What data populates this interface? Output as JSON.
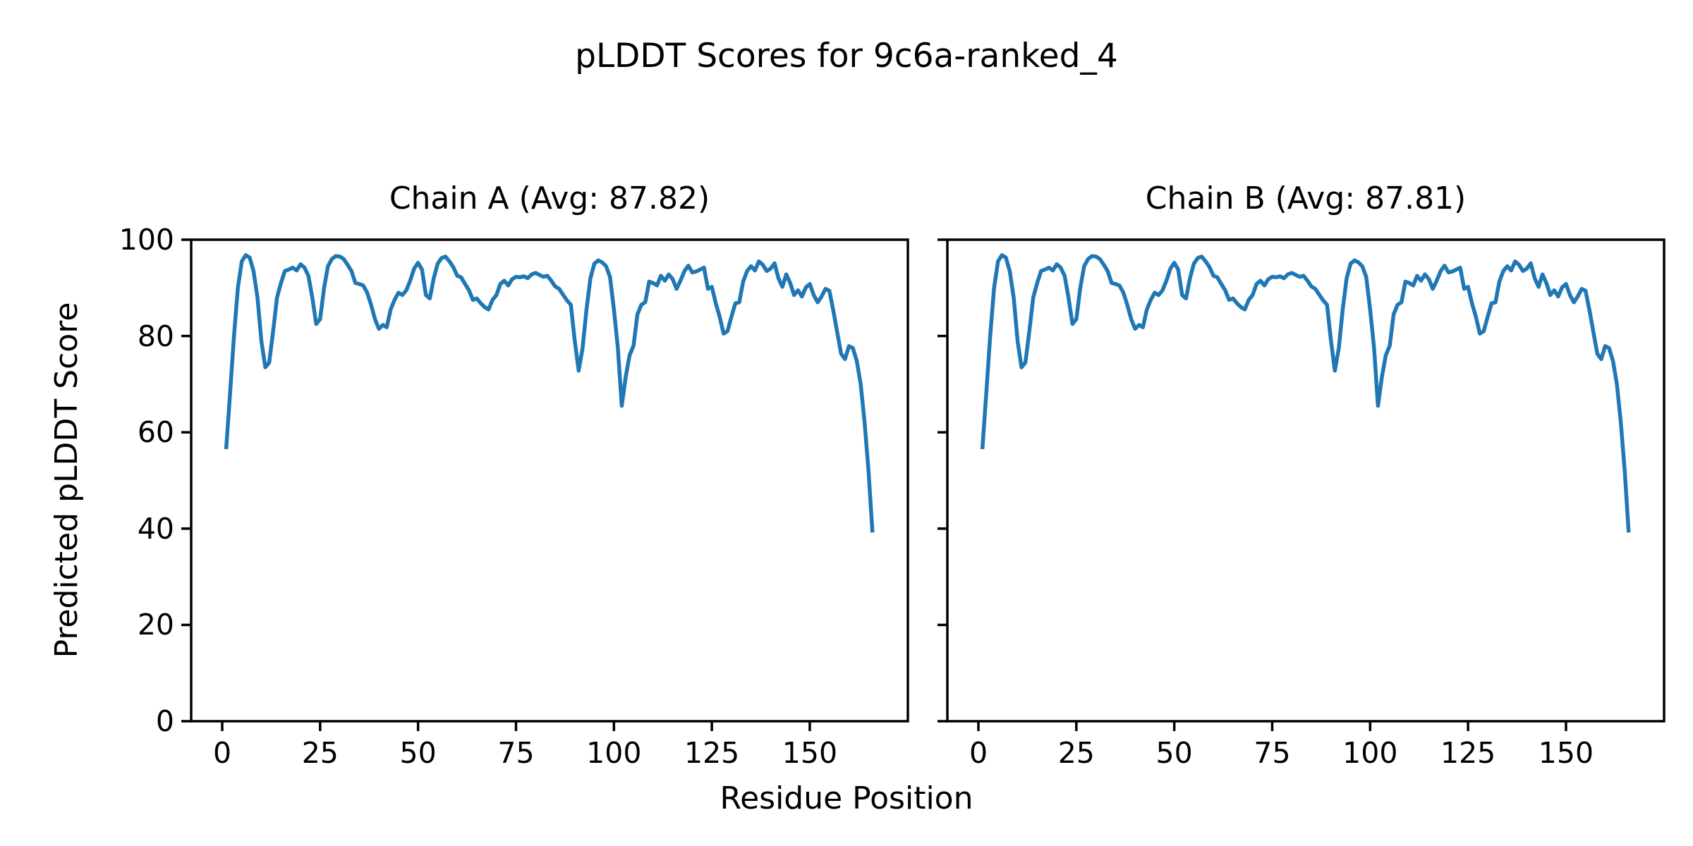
{
  "figure": {
    "title": "pLDDT Scores for 9c6a-ranked_4",
    "xlabel": "Residue Position",
    "ylabel": "Predicted pLDDT Score",
    "background": "#ffffff",
    "text_color": "#000000"
  },
  "chart_data": [
    {
      "type": "line",
      "title": "Chain A (Avg: 87.82)",
      "chain": "A",
      "avg": 87.82,
      "line_color": "#1f77b4",
      "grid": false,
      "legend": null,
      "x_start": 1,
      "x_ticks": [
        0,
        25,
        50,
        75,
        100,
        125,
        150
      ],
      "y_ticks": [
        0,
        20,
        40,
        60,
        80,
        100
      ],
      "xlim": [
        -9.4,
        174.8
      ],
      "ylim": [
        0,
        100
      ],
      "values": [
        56.5,
        68,
        80,
        90,
        95.5,
        96.8,
        96.3,
        93.5,
        88,
        79,
        73.5,
        74.5,
        81,
        88,
        91,
        93.5,
        93.8,
        94.2,
        93.6,
        94.9,
        94.2,
        92.5,
        88,
        82.5,
        83.5,
        90,
        94.5,
        96,
        96.6,
        96.5,
        96,
        94.8,
        93.5,
        91,
        90.8,
        90.5,
        89,
        86.5,
        83.5,
        81.5,
        82.3,
        81.8,
        85.5,
        87.5,
        89,
        88.5,
        89.5,
        91.5,
        94,
        95.2,
        93.8,
        88.5,
        87.8,
        92,
        95,
        96.2,
        96.5,
        95.5,
        94.3,
        92.5,
        92.2,
        90.8,
        89.5,
        87.5,
        87.8,
        86.8,
        86,
        85.5,
        87.5,
        88.5,
        90.8,
        91.5,
        90.5,
        91.8,
        92.3,
        92.2,
        92.4,
        92,
        92.8,
        93.1,
        92.7,
        92.3,
        92.5,
        91.5,
        90.3,
        89.8,
        88.6,
        87.4,
        86.5,
        79,
        72.8,
        77.5,
        85.5,
        92,
        95,
        95.7,
        95.3,
        94.5,
        92.3,
        85.5,
        77.5,
        65.5,
        71.5,
        76,
        78,
        84.5,
        86.5,
        87,
        91.3,
        91,
        90.5,
        92.5,
        91.5,
        92.8,
        91.8,
        89.8,
        91.5,
        93.5,
        94.6,
        93.2,
        93.4,
        93.8,
        94.2,
        89.8,
        90.2,
        86.8,
        84,
        80.5,
        81,
        84,
        86.8,
        87,
        91.3,
        93.5,
        94.5,
        93.6,
        95.5,
        94.8,
        93.5,
        94,
        95.1,
        92,
        90.2,
        92.8,
        91,
        88.5,
        89.5,
        88.2,
        90.1,
        90.8,
        88.5,
        87,
        88.2,
        89.8,
        89.4,
        85.3,
        80.8,
        76.3,
        75.2,
        77.9,
        77.5,
        74.8,
        70,
        62,
        52,
        39.2
      ]
    },
    {
      "type": "line",
      "title": "Chain B (Avg: 87.81)",
      "chain": "B",
      "avg": 87.81,
      "line_color": "#1f77b4",
      "grid": false,
      "legend": null,
      "x_start": 1,
      "x_ticks": [
        0,
        25,
        50,
        75,
        100,
        125,
        150
      ],
      "y_ticks": [
        0,
        20,
        40,
        60,
        80,
        100
      ],
      "xlim": [
        -9.4,
        174.8
      ],
      "ylim": [
        0,
        100
      ],
      "values": [
        56.5,
        68,
        80,
        90,
        95.5,
        96.8,
        96.3,
        93.5,
        88,
        79,
        73.5,
        74.5,
        81,
        88,
        91,
        93.5,
        93.8,
        94.2,
        93.6,
        94.9,
        94.2,
        92.5,
        88,
        82.5,
        83.5,
        90,
        94.5,
        96,
        96.6,
        96.5,
        96,
        94.8,
        93.5,
        91,
        90.8,
        90.5,
        89,
        86.5,
        83.5,
        81.5,
        82.3,
        81.8,
        85.5,
        87.5,
        89,
        88.5,
        89.5,
        91.5,
        94,
        95.2,
        93.8,
        88.5,
        87.8,
        92,
        95,
        96.2,
        96.5,
        95.5,
        94.3,
        92.5,
        92.2,
        90.8,
        89.5,
        87.5,
        87.8,
        86.8,
        86,
        85.5,
        87.5,
        88.5,
        90.8,
        91.5,
        90.5,
        91.8,
        92.3,
        92.2,
        92.4,
        92,
        92.8,
        93.1,
        92.7,
        92.3,
        92.5,
        91.5,
        90.3,
        89.8,
        88.6,
        87.4,
        86.5,
        79,
        72.8,
        77.5,
        85.5,
        92,
        95,
        95.7,
        95.3,
        94.5,
        92.3,
        85.5,
        77.5,
        65.5,
        71.5,
        76,
        78,
        84.5,
        86.5,
        87,
        91.3,
        91,
        90.5,
        92.5,
        91.5,
        92.8,
        91.8,
        89.8,
        91.5,
        93.5,
        94.6,
        93.2,
        93.4,
        93.8,
        94.2,
        89.8,
        90.2,
        86.8,
        84,
        80.5,
        81,
        84,
        86.8,
        87,
        91.3,
        93.5,
        94.5,
        93.6,
        95.5,
        94.8,
        93.5,
        94,
        95.1,
        92,
        90.2,
        92.8,
        91,
        88.5,
        89.5,
        88.2,
        90.1,
        90.8,
        88.5,
        87,
        88.2,
        89.8,
        89.4,
        85.3,
        80.8,
        76.3,
        75.2,
        77.9,
        77.5,
        74.8,
        70,
        62,
        52,
        39.2
      ]
    }
  ]
}
